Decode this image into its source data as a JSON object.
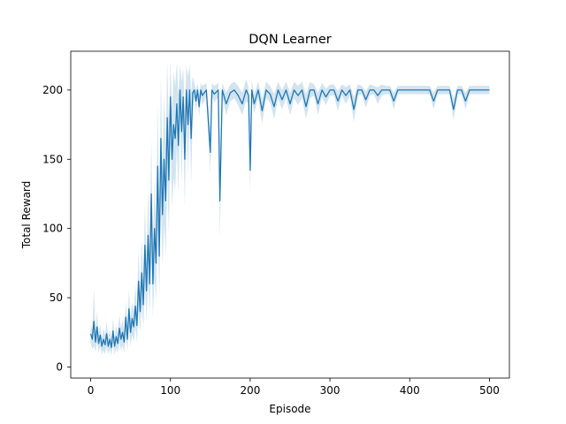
{
  "chart_data": {
    "type": "line",
    "title": "DQN Learner",
    "xlabel": "Episode",
    "ylabel": "Total Reward",
    "xlim": [
      -25,
      525
    ],
    "ylim": [
      -8,
      228
    ],
    "xticks": [
      0,
      100,
      200,
      300,
      400,
      500
    ],
    "yticks": [
      0,
      50,
      100,
      150,
      200
    ],
    "grid": false,
    "legend": "none",
    "colors": {
      "line": "#1f77b4",
      "band": "#1f77b4"
    },
    "series": [
      {
        "x": [
          0,
          2,
          4,
          6,
          8,
          10,
          12,
          14,
          16,
          18,
          20,
          22,
          24,
          26,
          28,
          30,
          32,
          34,
          36,
          38,
          40,
          42,
          44,
          46,
          48,
          50,
          52,
          54,
          56,
          58,
          60,
          62,
          64,
          66,
          68,
          70,
          72,
          74,
          76,
          78,
          80,
          82,
          84,
          86,
          88,
          90,
          92,
          94,
          96,
          98,
          100,
          102,
          104,
          106,
          108,
          110,
          112,
          114,
          116,
          118,
          120,
          122,
          124,
          126,
          128,
          130,
          132,
          134,
          136,
          138,
          140,
          145,
          150,
          152,
          155,
          160,
          162,
          165,
          170,
          175,
          180,
          185,
          190,
          195,
          198,
          200,
          202,
          205,
          210,
          215,
          220,
          225,
          230,
          235,
          240,
          245,
          250,
          255,
          260,
          265,
          270,
          275,
          280,
          285,
          290,
          295,
          300,
          305,
          310,
          315,
          320,
          325,
          330,
          335,
          340,
          345,
          350,
          355,
          360,
          365,
          370,
          375,
          380,
          385,
          390,
          395,
          400,
          405,
          410,
          415,
          420,
          425,
          430,
          435,
          440,
          445,
          450,
          455,
          460,
          465,
          470,
          475,
          480,
          485,
          490,
          495,
          500
        ],
        "y": [
          24,
          20,
          33,
          18,
          29,
          17,
          23,
          15,
          20,
          16,
          24,
          15,
          20,
          14,
          26,
          15,
          22,
          17,
          28,
          20,
          25,
          18,
          36,
          20,
          42,
          25,
          35,
          29,
          44,
          30,
          62,
          40,
          68,
          45,
          88,
          55,
          95,
          60,
          125,
          60,
          100,
          75,
          145,
          80,
          165,
          110,
          150,
          120,
          180,
          135,
          195,
          150,
          175,
          165,
          190,
          160,
          200,
          170,
          195,
          150,
          200,
          175,
          200,
          165,
          198,
          200,
          192,
          200,
          188,
          200,
          196,
          200,
          155,
          200,
          197,
          200,
          120,
          200,
          190,
          198,
          200,
          196,
          190,
          200,
          196,
          142,
          200,
          190,
          200,
          185,
          200,
          197,
          188,
          200,
          193,
          200,
          190,
          200,
          196,
          200,
          188,
          200,
          200,
          190,
          200,
          195,
          200,
          200,
          192,
          200,
          196,
          200,
          186,
          200,
          200,
          193,
          200,
          200,
          196,
          200,
          200,
          200,
          192,
          200,
          200,
          200,
          200,
          200,
          200,
          200,
          200,
          200,
          192,
          200,
          200,
          200,
          200,
          186,
          200,
          200,
          192,
          200,
          200,
          200,
          200,
          200,
          200
        ],
        "y_upper": [
          31,
          27,
          57,
          25,
          40,
          24,
          31,
          21,
          28,
          23,
          33,
          21,
          27,
          20,
          35,
          21,
          30,
          24,
          38,
          28,
          34,
          26,
          48,
          28,
          56,
          35,
          47,
          40,
          59,
          42,
          84,
          55,
          92,
          62,
          118,
          76,
          128,
          82,
          165,
          84,
          135,
          102,
          190,
          109,
          210,
          146,
          196,
          160,
          221,
          175,
          221,
          185,
          213,
          203,
          220,
          196,
          218,
          206,
          216,
          185,
          218,
          210,
          218,
          198,
          210,
          205,
          200,
          205,
          196,
          205,
          203,
          205,
          170,
          205,
          203,
          205,
          148,
          205,
          198,
          204,
          206,
          203,
          198,
          208,
          202,
          158,
          207,
          197,
          206,
          194,
          206,
          203,
          197,
          206,
          200,
          206,
          198,
          206,
          203,
          206,
          197,
          206,
          204,
          198,
          205,
          201,
          204,
          204,
          199,
          204,
          202,
          204,
          195,
          204,
          203,
          199,
          204,
          203,
          202,
          204,
          203,
          203,
          198,
          203,
          203,
          203,
          203,
          203,
          203,
          203,
          203,
          203,
          198,
          203,
          203,
          203,
          203,
          194,
          203,
          203,
          198,
          203,
          203,
          203,
          203,
          203,
          203
        ],
        "y_lower": [
          17,
          13,
          15,
          11,
          18,
          10,
          15,
          9,
          12,
          9,
          15,
          9,
          13,
          8,
          17,
          9,
          14,
          10,
          18,
          12,
          16,
          10,
          24,
          12,
          28,
          15,
          23,
          18,
          29,
          18,
          40,
          25,
          44,
          28,
          58,
          34,
          62,
          38,
          85,
          36,
          65,
          48,
          100,
          51,
          120,
          74,
          104,
          80,
          139,
          95,
          169,
          115,
          137,
          127,
          160,
          124,
          182,
          134,
          174,
          115,
          182,
          140,
          182,
          132,
          186,
          195,
          184,
          195,
          180,
          195,
          189,
          195,
          140,
          195,
          191,
          195,
          92,
          195,
          182,
          192,
          194,
          189,
          182,
          192,
          190,
          126,
          193,
          183,
          194,
          176,
          194,
          191,
          179,
          194,
          186,
          194,
          182,
          194,
          189,
          194,
          179,
          194,
          196,
          182,
          195,
          189,
          196,
          196,
          185,
          196,
          190,
          196,
          177,
          196,
          197,
          187,
          196,
          197,
          190,
          196,
          197,
          197,
          186,
          197,
          197,
          197,
          197,
          197,
          197,
          197,
          197,
          197,
          186,
          197,
          197,
          197,
          197,
          178,
          197,
          197,
          186,
          197,
          197,
          197,
          197,
          197,
          197
        ]
      }
    ]
  }
}
